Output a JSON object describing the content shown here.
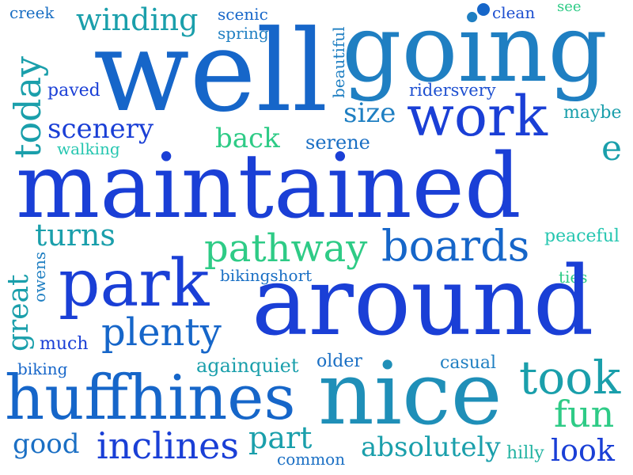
{
  "title": "Word cloud",
  "palette": {
    "blue_dark": "#1a3fd6",
    "blue": "#1666c9",
    "blue_mid": "#1f7fc2",
    "teal": "#1a9fab",
    "teal_light": "#22b3a2",
    "green": "#2ecb86",
    "aqua": "#25c6b0",
    "navy_blue": "#1d4fd0"
  },
  "words": [
    "creek",
    "winding",
    "scenic",
    "spring",
    "clean",
    "see",
    "well",
    "going",
    "today",
    "beautiful",
    "paved",
    "ridersvery",
    "scenery",
    "size",
    "work",
    "maybe",
    "walking",
    "back",
    "serene",
    "e",
    "maintained",
    "turns",
    "pathway",
    "boards",
    "peaceful",
    "great",
    "owens",
    "bikingshort",
    "ties",
    "park",
    "around",
    "plenty",
    "much",
    "biking",
    "againquiet",
    "older",
    "casual",
    "took",
    "huffhines",
    "nice",
    "fun",
    "good",
    "inclines",
    "part",
    "common",
    "absolutely",
    "hilly",
    "look"
  ]
}
